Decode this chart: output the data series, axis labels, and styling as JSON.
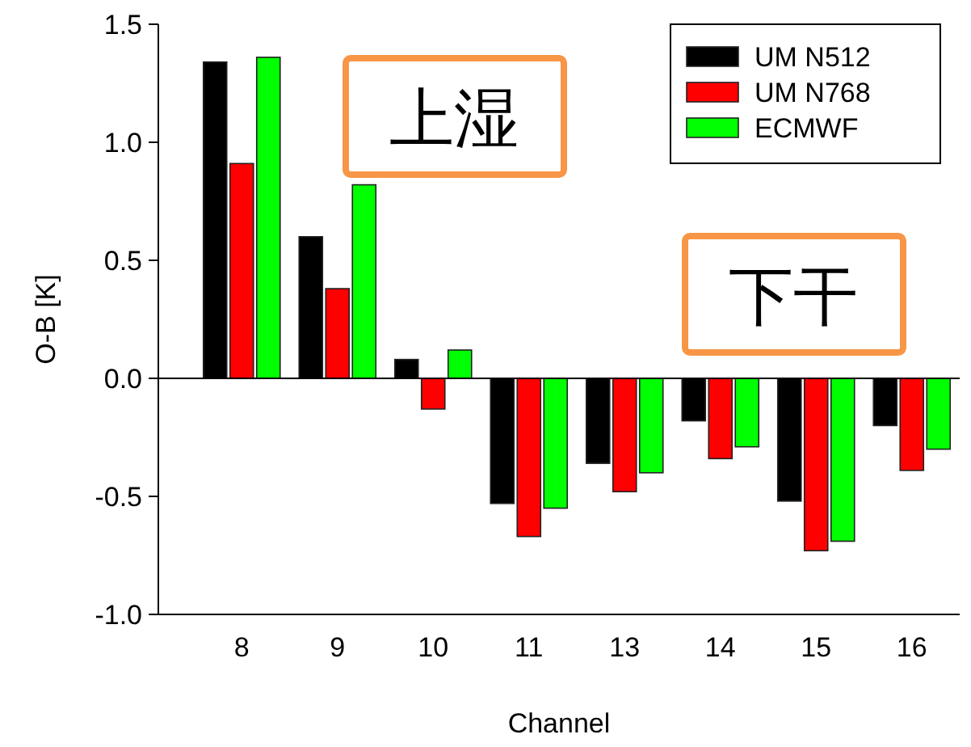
{
  "chart_data": {
    "type": "bar",
    "xlabel": "Channel",
    "ylabel": "O-B [K]",
    "categories": [
      "8",
      "9",
      "10",
      "11",
      "13",
      "14",
      "15",
      "16"
    ],
    "series": [
      {
        "name": "UM N512",
        "color": "#000000",
        "values": [
          1.34,
          0.6,
          0.08,
          -0.53,
          -0.36,
          -0.18,
          -0.52,
          -0.2
        ]
      },
      {
        "name": "UM N768",
        "color": "#ff0000",
        "values": [
          0.91,
          0.38,
          -0.13,
          -0.67,
          -0.48,
          -0.34,
          -0.73,
          -0.39
        ]
      },
      {
        "name": "ECMWF",
        "color": "#00ff00",
        "values": [
          1.36,
          0.82,
          0.12,
          -0.55,
          -0.4,
          -0.29,
          -0.69,
          -0.3
        ]
      }
    ],
    "ylim": [
      -1.0,
      1.5
    ],
    "yticks": [
      {
        "value": -1.0,
        "label": "-1.0"
      },
      {
        "value": -0.5,
        "label": "-0.5"
      },
      {
        "value": 0,
        "label": "0.0"
      },
      {
        "value": 0.5,
        "label": "0.5"
      },
      {
        "value": 1.0,
        "label": "1.0"
      },
      {
        "value": 1.5,
        "label": "1.5"
      }
    ],
    "annotations": [
      "上湿",
      "下干"
    ],
    "legend": "top right"
  }
}
